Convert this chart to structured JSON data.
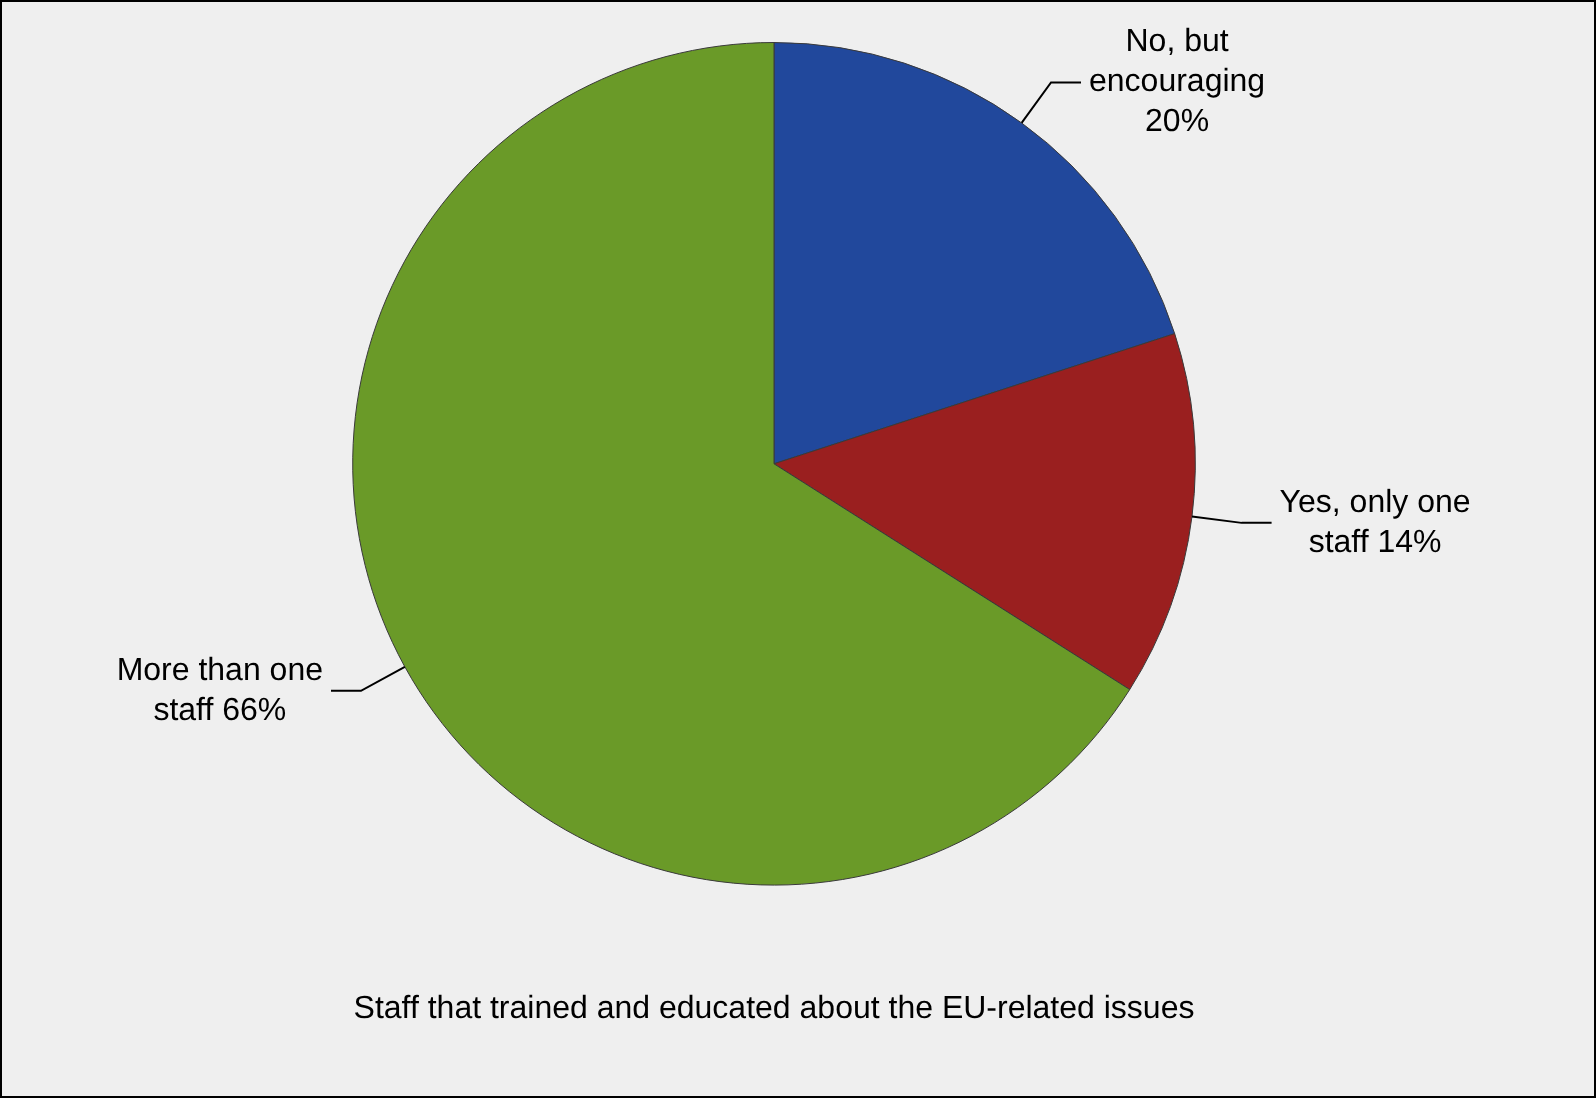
{
  "chart_data": {
    "type": "pie",
    "title": "Staff that trained and educated about the EU-related issues",
    "categories": [
      "No, but encouraging",
      "Yes, only one staff",
      "More than one staff"
    ],
    "values": [
      20,
      14,
      66
    ],
    "colors": [
      "#21489c",
      "#9a1f1f",
      "#6a9a28"
    ],
    "value_labels": [
      "20%",
      "14%",
      "66%"
    ],
    "legend": false
  }
}
